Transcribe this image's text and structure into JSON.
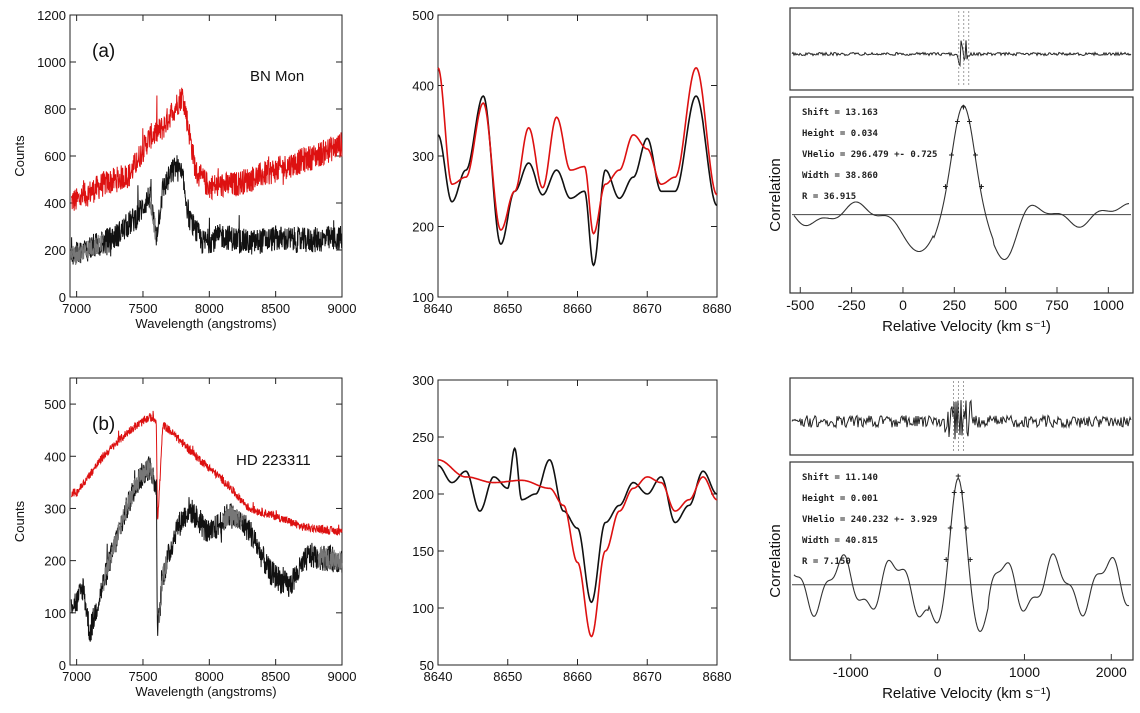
{
  "colors": {
    "black": "#111111",
    "gray": "#777777",
    "red": "#dd1111",
    "corr": "#333333"
  },
  "chart_data": [
    {
      "type": "line",
      "panel": "a-left",
      "panel_label": "(a)",
      "annotation": "BN Mon",
      "xlabel": "Wavelength (angstroms)",
      "ylabel": "Counts",
      "xlim": [
        6950,
        9000
      ],
      "ylim": [
        0,
        1200
      ],
      "xticks": [
        7000,
        7500,
        8000,
        8500,
        9000
      ],
      "yticks": [
        0,
        200,
        400,
        600,
        800,
        1000,
        1200
      ],
      "series": [
        {
          "color": "red",
          "x": [
            7000,
            7200,
            7400,
            7550,
            7650,
            7700,
            7800,
            7900,
            8000,
            8200,
            8400,
            8600,
            8800,
            9000
          ],
          "y": [
            410,
            480,
            520,
            680,
            720,
            770,
            860,
            530,
            470,
            480,
            520,
            560,
            600,
            650
          ]
        },
        {
          "color": "black",
          "x": [
            7000,
            7100,
            7200,
            7300,
            7450,
            7550,
            7600,
            7650,
            7750,
            7800,
            7850,
            7950,
            8100,
            8300,
            8500,
            8700,
            9000
          ],
          "y": [
            180,
            210,
            230,
            260,
            340,
            430,
            260,
            460,
            560,
            500,
            330,
            230,
            260,
            230,
            250,
            240,
            250
          ]
        }
      ]
    },
    {
      "type": "line",
      "panel": "a-middle",
      "xlim": [
        8640,
        8680
      ],
      "ylim": [
        100,
        500
      ],
      "xticks": [
        8640,
        8650,
        8660,
        8670,
        8680
      ],
      "yticks": [
        100,
        200,
        300,
        400,
        500
      ],
      "series": [
        {
          "color": "black",
          "x": [
            8640,
            8642,
            8644,
            8646.5,
            8649,
            8651,
            8653,
            8655,
            8657,
            8659,
            8661,
            8662.3,
            8664,
            8666,
            8668,
            8670,
            8672,
            8674,
            8677,
            8680
          ],
          "y": [
            330,
            235,
            280,
            385,
            175,
            250,
            290,
            245,
            280,
            240,
            250,
            145,
            280,
            240,
            270,
            325,
            250,
            250,
            385,
            230
          ]
        },
        {
          "color": "red",
          "x": [
            8640,
            8642,
            8644,
            8646.5,
            8649,
            8651,
            8653,
            8655,
            8657,
            8659,
            8661,
            8662.3,
            8664,
            8666,
            8668,
            8670,
            8672,
            8674,
            8677,
            8680
          ],
          "y": [
            425,
            260,
            270,
            375,
            195,
            250,
            340,
            255,
            355,
            280,
            285,
            190,
            260,
            280,
            330,
            310,
            260,
            270,
            425,
            245
          ]
        }
      ]
    },
    {
      "type": "line",
      "panel": "a-right",
      "ylabel": "Correlation",
      "xlabel": "Relative Velocity (km s⁻¹)",
      "xlim": [
        -550,
        1120
      ],
      "xticks": [
        -500,
        -250,
        0,
        250,
        500,
        750,
        1000
      ],
      "stats": [
        "Shift = 13.163",
        "Height = 0.034",
        "VHelio = 296.479 +- 0.725",
        "Width = 38.860",
        "R = 36.915"
      ],
      "peak_velocity": 296
    },
    {
      "type": "line",
      "panel": "b-left",
      "panel_label": "(b)",
      "annotation": "HD 223311",
      "xlabel": "Wavelength (angstroms)",
      "ylabel": "Counts",
      "xlim": [
        6950,
        9000
      ],
      "ylim": [
        0,
        550
      ],
      "xticks": [
        7000,
        7500,
        8000,
        8500,
        9000
      ],
      "yticks": [
        0,
        100,
        200,
        300,
        400,
        500
      ],
      "series": [
        {
          "color": "red",
          "x": [
            7000,
            7200,
            7400,
            7550,
            7600,
            7610,
            7650,
            7700,
            7900,
            8100,
            8300,
            8500,
            8700,
            9000
          ],
          "y": [
            330,
            400,
            450,
            475,
            470,
            270,
            460,
            450,
            400,
            355,
            300,
            285,
            265,
            255
          ]
        },
        {
          "color": "black",
          "x": [
            7000,
            7050,
            7100,
            7150,
            7250,
            7350,
            7450,
            7550,
            7600,
            7610,
            7650,
            7750,
            7850,
            8000,
            8150,
            8300,
            8450,
            8600,
            8750,
            9000
          ],
          "y": [
            120,
            150,
            60,
            110,
            200,
            280,
            350,
            380,
            340,
            60,
            170,
            260,
            300,
            250,
            290,
            260,
            180,
            150,
            210,
            200
          ]
        }
      ]
    },
    {
      "type": "line",
      "panel": "b-middle",
      "xlim": [
        8640,
        8680
      ],
      "ylim": [
        50,
        300
      ],
      "xticks": [
        8640,
        8650,
        8660,
        8670,
        8680
      ],
      "yticks": [
        50,
        100,
        150,
        200,
        250,
        300
      ],
      "series": [
        {
          "color": "black",
          "x": [
            8640,
            8642,
            8644,
            8646,
            8648,
            8650,
            8651,
            8652,
            8654,
            8656,
            8658,
            8660,
            8662,
            8664,
            8666,
            8668,
            8670,
            8672,
            8674,
            8676,
            8678,
            8680
          ],
          "y": [
            225,
            210,
            220,
            185,
            215,
            205,
            240,
            195,
            200,
            230,
            185,
            170,
            105,
            175,
            190,
            210,
            200,
            215,
            175,
            190,
            220,
            200
          ]
        },
        {
          "color": "red",
          "x": [
            8640,
            8644,
            8648,
            8652,
            8656,
            8658,
            8660,
            8662,
            8664,
            8666,
            8668,
            8670,
            8672,
            8674,
            8676,
            8678,
            8680
          ],
          "y": [
            230,
            215,
            210,
            212,
            205,
            190,
            140,
            75,
            150,
            185,
            205,
            215,
            210,
            185,
            195,
            215,
            195
          ]
        }
      ]
    },
    {
      "type": "line",
      "panel": "b-right",
      "ylabel": "Correlation",
      "xlabel": "Relative Velocity (km s⁻¹)",
      "xlim": [
        -1700,
        2250
      ],
      "xticks": [
        -1000,
        0,
        1000,
        2000
      ],
      "stats": [
        "Shift = 11.140",
        "Height = 0.001",
        "VHelio = 240.232 +- 3.929",
        "Width = 40.815",
        "R = 7.150"
      ],
      "peak_velocity": 240
    }
  ]
}
